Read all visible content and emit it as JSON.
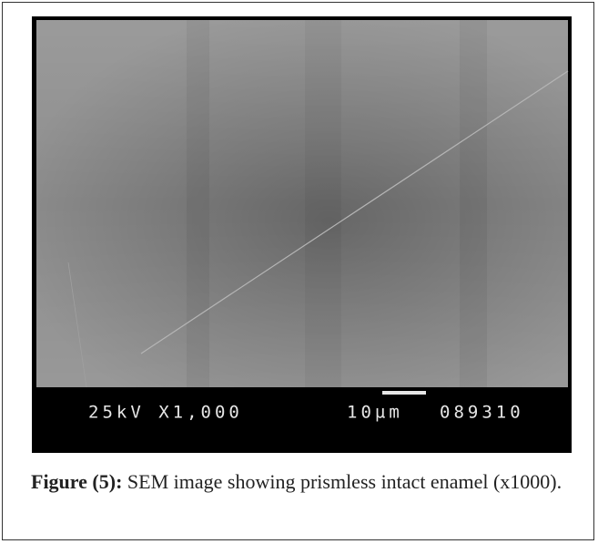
{
  "image": {
    "info_left": "25kV X1,000",
    "scale": "10µm",
    "code": "089310"
  },
  "caption": {
    "label": "Figure (5):",
    "text": "SEM image showing prismless intact enamel (x1000)."
  }
}
